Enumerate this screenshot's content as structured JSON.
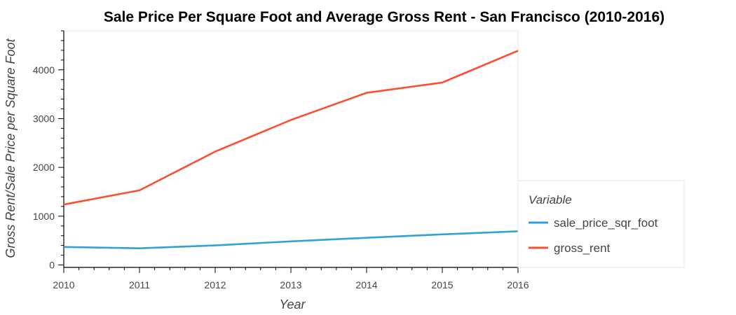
{
  "chart_data": {
    "type": "line",
    "title": "Sale Price Per Square Foot and Average Gross Rent - San Francisco (2010-2016)",
    "xlabel": "Year",
    "ylabel": "Gross Rent/Sale Price per Square Foot",
    "x": [
      2010,
      2011,
      2012,
      2013,
      2014,
      2015,
      2016
    ],
    "xlim": [
      2010,
      2016
    ],
    "ylim": [
      -50,
      4800
    ],
    "x_ticks": [
      2010,
      2011,
      2012,
      2013,
      2014,
      2015,
      2016
    ],
    "y_ticks": [
      0,
      1000,
      2000,
      3000,
      4000
    ],
    "grid": false,
    "legend": {
      "title": "Variable",
      "placement": "right"
    },
    "series": [
      {
        "name": "sale_price_sqr_foot",
        "color": "#30a2da",
        "values": [
          369,
          342,
          400,
          484,
          557,
          627,
          691
        ]
      },
      {
        "name": "gross_rent",
        "color": "#fc4f30",
        "values": [
          1239,
          1530,
          2324,
          2972,
          3528,
          3739,
          4391
        ]
      }
    ]
  }
}
